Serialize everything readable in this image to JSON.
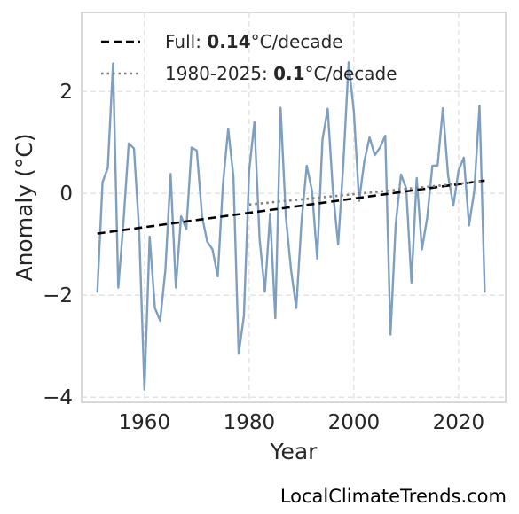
{
  "chart_data": {
    "type": "line",
    "xlabel": "Year",
    "ylabel": "Anomaly (°C)",
    "xlim": [
      1948,
      2029
    ],
    "ylim": [
      -4.1,
      3.55
    ],
    "x_ticks": [
      1960,
      1980,
      2000,
      2020
    ],
    "y_ticks": [
      -4,
      -2,
      0,
      2
    ],
    "y_tick_labels": [
      "−4",
      "−2",
      "0",
      "2"
    ],
    "grid": true,
    "legend_position": "top-left",
    "series": [
      {
        "style": "line",
        "color": "#7f9fc0",
        "x": [
          1951,
          1952,
          1953,
          1954,
          1955,
          1956,
          1957,
          1958,
          1959,
          1960,
          1961,
          1962,
          1963,
          1964,
          1965,
          1966,
          1967,
          1968,
          1969,
          1970,
          1971,
          1972,
          1973,
          1974,
          1975,
          1976,
          1977,
          1978,
          1979,
          1980,
          1981,
          1982,
          1983,
          1984,
          1985,
          1986,
          1987,
          1988,
          1989,
          1990,
          1991,
          1992,
          1993,
          1994,
          1995,
          1996,
          1997,
          1998,
          1999,
          2000,
          2001,
          2002,
          2003,
          2004,
          2005,
          2006,
          2007,
          2008,
          2009,
          2010,
          2011,
          2012,
          2013,
          2014,
          2015,
          2016,
          2017,
          2018,
          2019,
          2020,
          2021,
          2022,
          2023,
          2024,
          2025
        ],
        "values": [
          -1.95,
          0.22,
          0.5,
          2.55,
          -1.85,
          -0.55,
          0.98,
          0.88,
          -0.75,
          -3.85,
          -0.85,
          -2.25,
          -2.5,
          -1.5,
          0.38,
          -1.85,
          -0.45,
          -0.7,
          0.9,
          0.84,
          -0.45,
          -0.95,
          -1.1,
          -1.63,
          0.18,
          1.27,
          0.32,
          -3.15,
          -2.4,
          0.44,
          1.4,
          -0.9,
          -1.93,
          -0.4,
          -2.45,
          1.68,
          -0.45,
          -1.5,
          -2.25,
          -0.55,
          0.54,
          0.05,
          -1.28,
          1.05,
          1.66,
          0.05,
          -1.0,
          0.6,
          2.57,
          1.6,
          -0.15,
          0.63,
          1.1,
          0.75,
          0.9,
          1.13,
          -2.77,
          -0.6,
          0.37,
          0.1,
          -1.75,
          0.3,
          -1.1,
          -0.48,
          0.54,
          0.55,
          1.67,
          0.35,
          -0.24,
          0.45,
          0.7,
          -0.63,
          0.05,
          1.72,
          -1.95
        ]
      },
      {
        "name": "Full: 0.14°C/decade",
        "style": "dashed",
        "color": "#000000",
        "x": [
          1951,
          2025
        ],
        "values": [
          -0.79,
          0.25
        ]
      },
      {
        "name": "1980-2025: 0.1°C/decade",
        "style": "dotted",
        "color": "#808080",
        "x": [
          1980,
          2025
        ],
        "values": [
          -0.22,
          0.24
        ]
      }
    ],
    "legend": [
      {
        "prefix": "Full: ",
        "bold": "0.14",
        "suffix": "°C/decade"
      },
      {
        "prefix": "1980-2025: ",
        "bold": "0.1",
        "suffix": "°C/decade"
      }
    ]
  },
  "watermark": "LocalClimateTrends.com"
}
